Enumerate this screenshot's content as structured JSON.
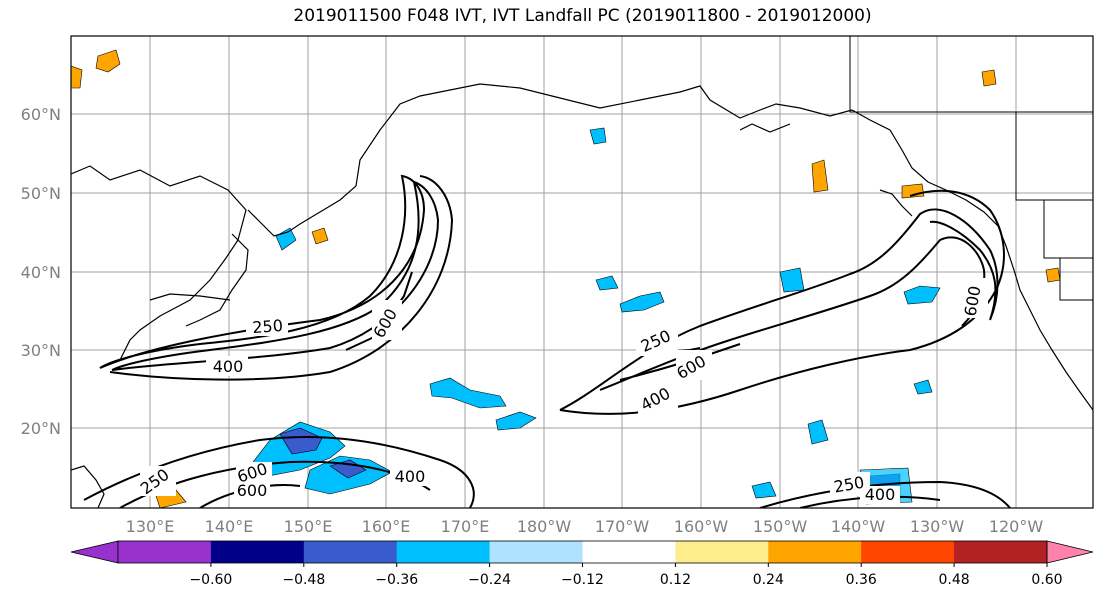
{
  "title": "2019011500 F048 IVT, IVT Landfall PC (2019011800 - 2019012000)",
  "lat_labels": [
    "60°N",
    "50°N",
    "40°N",
    "30°N",
    "20°N"
  ],
  "lon_labels": [
    "130°E",
    "140°E",
    "150°E",
    "160°E",
    "170°E",
    "180°W",
    "170°W",
    "160°W",
    "150°W",
    "140°W",
    "130°W",
    "120°W"
  ],
  "colorbar": {
    "ticks": [
      "−0.60",
      "−0.48",
      "−0.36",
      "−0.24",
      "−0.12",
      "0.12",
      "0.24",
      "0.36",
      "0.48",
      "0.60"
    ],
    "colors": {
      "under": "#9932cc",
      "bins": [
        "#9932cc",
        "#00008b",
        "#3a5bcd",
        "#00bfff",
        "#b0e2ff",
        "#ffffff",
        "#ffec8b",
        "#ffa500",
        "#ff4500",
        "#b22222"
      ],
      "over": "#ff82ab"
    }
  },
  "contour_labels": [
    {
      "id": "c1",
      "text": "250"
    },
    {
      "id": "c2",
      "text": "400"
    },
    {
      "id": "c3",
      "text": "600"
    },
    {
      "id": "c4",
      "text": "250"
    },
    {
      "id": "c5",
      "text": "600"
    },
    {
      "id": "c6",
      "text": "400"
    },
    {
      "id": "c7",
      "text": "600"
    },
    {
      "id": "c8",
      "text": "250"
    },
    {
      "id": "c9",
      "text": "600"
    },
    {
      "id": "c10",
      "text": "600"
    },
    {
      "id": "c11",
      "text": "400"
    },
    {
      "id": "c12",
      "text": "250"
    },
    {
      "id": "c13",
      "text": "400"
    }
  ]
}
